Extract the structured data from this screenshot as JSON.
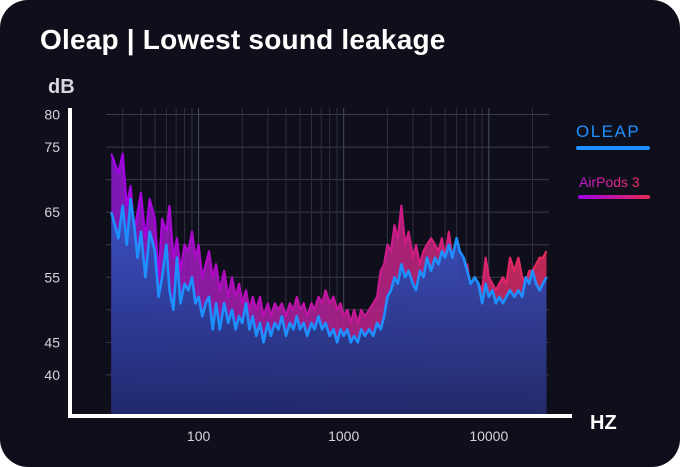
{
  "header": {
    "title": "Oleap | Lowest sound leakage"
  },
  "chart_data": {
    "type": "area",
    "ylabel": "dB",
    "xlabel": "HZ",
    "x_scale": "log",
    "xlim": [
      23,
      26000
    ],
    "ylim": [
      34,
      81
    ],
    "y_ticks": [
      80,
      75,
      65,
      55,
      45,
      40
    ],
    "x_ticks": [
      100,
      1000,
      10000
    ],
    "grid": true,
    "legend_position": "right",
    "series": [
      {
        "name": "OLEAP",
        "color": "#1e8fff",
        "x": [
          25,
          28,
          30,
          32,
          34,
          36,
          38,
          40,
          43,
          46,
          50,
          53,
          56,
          60,
          63,
          67,
          71,
          75,
          80,
          85,
          90,
          95,
          100,
          106,
          112,
          118,
          125,
          132,
          140,
          150,
          160,
          170,
          180,
          190,
          200,
          212,
          224,
          236,
          250,
          265,
          280,
          300,
          315,
          335,
          355,
          375,
          400,
          425,
          450,
          475,
          500,
          530,
          560,
          600,
          630,
          670,
          710,
          750,
          800,
          850,
          900,
          950,
          1000,
          1060,
          1120,
          1180,
          1250,
          1320,
          1400,
          1500,
          1600,
          1700,
          1800,
          1900,
          2000,
          2120,
          2240,
          2360,
          2500,
          2650,
          2800,
          3000,
          3150,
          3350,
          3550,
          3750,
          4000,
          4250,
          4500,
          4750,
          5000,
          5300,
          5600,
          6000,
          6300,
          6700,
          7100,
          7500,
          8000,
          8500,
          9000,
          9500,
          10000,
          10600,
          11200,
          11800,
          12500,
          13200,
          14000,
          15000,
          16000,
          17000,
          18000,
          19000,
          20000,
          21200,
          22400,
          23600,
          25000
        ],
        "values": [
          65,
          61,
          66,
          60,
          67,
          63,
          58,
          62,
          55,
          62,
          59,
          52,
          55,
          60,
          53,
          50,
          58,
          51,
          54,
          53,
          55,
          51,
          52,
          49,
          51,
          52,
          47,
          51,
          47,
          51,
          48,
          50,
          47,
          49,
          48,
          51,
          47,
          49,
          46,
          48,
          45,
          48,
          46,
          48,
          47,
          49,
          46,
          48,
          47,
          49,
          47,
          48,
          46,
          48,
          47,
          49,
          47,
          48,
          46,
          47,
          45,
          47,
          46,
          47,
          45,
          46,
          45,
          47,
          46,
          47,
          46,
          48,
          47,
          49,
          52,
          53,
          55,
          54,
          57,
          55,
          56,
          54,
          53,
          56,
          55,
          58,
          56,
          58,
          57,
          59,
          58,
          60,
          58,
          61,
          59,
          58,
          56,
          54,
          55,
          54,
          51,
          54,
          52,
          53,
          51,
          52,
          51,
          52,
          53,
          52,
          53,
          52,
          55,
          54,
          56,
          54,
          53,
          54,
          55
        ]
      },
      {
        "name": "AirPods 3",
        "color": "#cc1f9a",
        "x": [
          25,
          28,
          30,
          32,
          34,
          36,
          38,
          40,
          43,
          46,
          50,
          53,
          56,
          60,
          63,
          67,
          71,
          75,
          80,
          85,
          90,
          95,
          100,
          106,
          112,
          118,
          125,
          132,
          140,
          150,
          160,
          170,
          180,
          190,
          200,
          212,
          224,
          236,
          250,
          265,
          280,
          300,
          315,
          335,
          355,
          375,
          400,
          425,
          450,
          475,
          500,
          530,
          560,
          600,
          630,
          670,
          710,
          750,
          800,
          850,
          900,
          950,
          1000,
          1060,
          1120,
          1180,
          1250,
          1320,
          1400,
          1500,
          1600,
          1700,
          1800,
          1900,
          2000,
          2120,
          2240,
          2360,
          2500,
          2650,
          2800,
          3000,
          3150,
          3350,
          3550,
          3750,
          4000,
          4250,
          4500,
          4750,
          5000,
          5300,
          5600,
          6000,
          6300,
          6700,
          7100,
          7500,
          8000,
          8500,
          9000,
          9500,
          10000,
          10600,
          11200,
          11800,
          12500,
          13200,
          14000,
          15000,
          16000,
          17000,
          18000,
          19000,
          20000,
          21200,
          22400,
          23600,
          25000
        ],
        "values": [
          74,
          71,
          74,
          66,
          69,
          62,
          65,
          68,
          61,
          67,
          64,
          55,
          64,
          62,
          66,
          58,
          61,
          56,
          60,
          59,
          62,
          58,
          60,
          55,
          57,
          59,
          55,
          57,
          53,
          56,
          52,
          55,
          52,
          54,
          51,
          53,
          50,
          52,
          50,
          52,
          49,
          51,
          49,
          51,
          50,
          51,
          49,
          51,
          50,
          52,
          50,
          51,
          49,
          51,
          50,
          52,
          51,
          53,
          51,
          52,
          50,
          51,
          49,
          50,
          48,
          50,
          48,
          50,
          49,
          50,
          51,
          52,
          56,
          57,
          60,
          59,
          63,
          61,
          66,
          60,
          62,
          58,
          60,
          57,
          59,
          60,
          61,
          60,
          59,
          61,
          58,
          62,
          58,
          58,
          55,
          54,
          57,
          53,
          55,
          54,
          53,
          58,
          55,
          54,
          53,
          54,
          55,
          54,
          58,
          56,
          58,
          55,
          54,
          56,
          56,
          57,
          58,
          58,
          59
        ]
      }
    ]
  }
}
